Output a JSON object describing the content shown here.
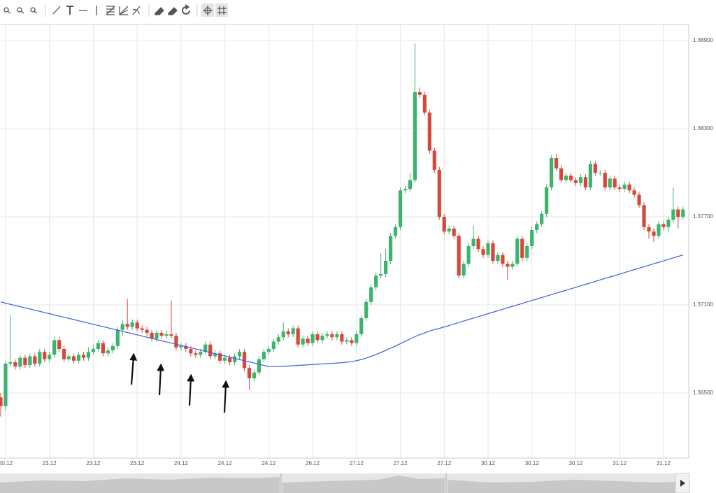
{
  "chart_data": {
    "type": "candlestick",
    "categories": [
      null,
      "20.12",
      null,
      null,
      null,
      null,
      null,
      null,
      null,
      null,
      "23.12",
      null,
      null,
      null,
      null,
      null,
      null,
      null,
      null,
      "23.12",
      null,
      null,
      null,
      null,
      null,
      null,
      null,
      null,
      "23.12",
      null,
      null,
      null,
      null,
      null,
      null,
      null,
      null,
      "24.12",
      null,
      null,
      null,
      null,
      null,
      null,
      null,
      null,
      "24.12",
      null,
      null,
      null,
      null,
      null,
      null,
      null,
      null,
      "24.12",
      null,
      null,
      null,
      null,
      null,
      null,
      null,
      null,
      "26.12",
      null,
      null,
      null,
      null,
      null,
      null,
      null,
      null,
      "27.12",
      null,
      null,
      null,
      null,
      null,
      null,
      null,
      null,
      "27.12",
      null,
      null,
      null,
      null,
      null,
      null,
      null,
      null,
      "27.12",
      null,
      null,
      null,
      null,
      null,
      null,
      null,
      null,
      "30.12",
      null,
      null,
      null,
      null,
      null,
      null,
      null,
      null,
      "30.12",
      null,
      null,
      null,
      null,
      null,
      null,
      null,
      null,
      "30.12",
      null,
      null,
      null,
      null,
      null,
      null,
      null,
      null,
      "31.12",
      null,
      null,
      null,
      null,
      null,
      null,
      null,
      null,
      "31.12",
      null,
      null,
      null,
      null
    ],
    "open": [
      1.3647,
      1.3641,
      1.367,
      1.3671,
      1.3668,
      1.3674,
      1.3669,
      1.3675,
      1.367,
      1.3678,
      1.3673,
      1.3676,
      1.3686,
      1.368,
      1.3673,
      1.3675,
      1.3672,
      1.3676,
      1.3674,
      1.3678,
      1.368,
      1.3684,
      1.3677,
      1.3679,
      1.3682,
      1.3693,
      1.3697,
      1.3695,
      1.3698,
      1.3694,
      1.3693,
      1.3691,
      1.3687,
      1.3691,
      1.3689,
      1.369,
      1.3689,
      1.3681,
      1.3682,
      1.368,
      1.3677,
      1.3676,
      1.3678,
      1.3683,
      1.3675,
      1.3677,
      1.3672,
      1.3674,
      1.3671,
      1.3675,
      1.3678,
      1.3667,
      1.366,
      1.3664,
      1.3673,
      1.3678,
      1.368,
      1.3685,
      1.3688,
      1.3692,
      1.369,
      1.3694,
      1.3683,
      1.3687,
      1.3684,
      1.369,
      1.3686,
      1.3689,
      1.369,
      1.3688,
      1.369,
      1.3685,
      1.3686,
      1.3684,
      1.369,
      1.3701,
      1.3712,
      1.3722,
      1.373,
      1.3731,
      1.374,
      1.3757,
      1.3763,
      1.3788,
      1.3789,
      1.3795,
      1.3855,
      1.3853,
      1.3841,
      1.3815,
      1.3802,
      1.377,
      1.376,
      1.3762,
      1.3757,
      1.373,
      1.3738,
      1.375,
      1.3755,
      1.3748,
      1.3744,
      1.3752,
      1.374,
      1.3744,
      1.3738,
      1.3736,
      1.3738,
      1.3755,
      1.3742,
      1.375,
      1.3761,
      1.3765,
      1.3772,
      1.379,
      1.381,
      1.3803,
      1.3795,
      1.3798,
      1.3795,
      1.3793,
      1.3797,
      1.379,
      1.3806,
      1.38,
      1.38,
      1.379,
      1.3796,
      1.379,
      1.3789,
      1.3792,
      1.3788,
      1.3785,
      1.3778,
      1.3763,
      1.376,
      1.3757,
      1.3765,
      1.3763,
      1.3768,
      1.3775,
      1.377
    ],
    "high": [
      1.365,
      1.3672,
      1.3703,
      1.3673,
      1.3676,
      1.3676,
      1.3677,
      1.3677,
      1.368,
      1.368,
      1.3678,
      1.3688,
      1.3688,
      1.3682,
      1.3677,
      1.3677,
      1.3678,
      1.3678,
      1.3681,
      1.3683,
      1.3686,
      1.3686,
      1.3681,
      1.3684,
      1.3695,
      1.37,
      1.3714,
      1.37,
      1.37,
      1.3696,
      1.3695,
      1.3693,
      1.3693,
      1.3693,
      1.3692,
      1.3713,
      1.3691,
      1.3684,
      1.3684,
      1.3682,
      1.3679,
      1.368,
      1.3685,
      1.3685,
      1.3679,
      1.3679,
      1.3676,
      1.3676,
      1.3677,
      1.368,
      1.368,
      1.3669,
      1.3666,
      1.3675,
      1.368,
      1.3682,
      1.3687,
      1.369,
      1.3698,
      1.3694,
      1.3696,
      1.3696,
      1.3689,
      1.3689,
      1.3692,
      1.3692,
      1.3691,
      1.3692,
      1.3692,
      1.3692,
      1.3692,
      1.3688,
      1.3688,
      1.3692,
      1.3703,
      1.3714,
      1.3724,
      1.3732,
      1.3745,
      1.3748,
      1.3759,
      1.3765,
      1.379,
      1.3791,
      1.38,
      1.3888,
      1.3858,
      1.3855,
      1.3843,
      1.3817,
      1.3804,
      1.3772,
      1.3764,
      1.3764,
      1.3759,
      1.374,
      1.3752,
      1.3764,
      1.3757,
      1.375,
      1.3754,
      1.3754,
      1.3746,
      1.3746,
      1.374,
      1.374,
      1.3757,
      1.3757,
      1.3752,
      1.3763,
      1.3767,
      1.3774,
      1.3792,
      1.3812,
      1.3813,
      1.3805,
      1.38,
      1.38,
      1.3797,
      1.3799,
      1.3799,
      1.3808,
      1.3808,
      1.3802,
      1.3802,
      1.3798,
      1.3798,
      1.3792,
      1.3794,
      1.3794,
      1.379,
      1.3787,
      1.378,
      1.3765,
      1.3762,
      1.3767,
      1.3767,
      1.377,
      1.379,
      1.3777,
      1.3777
    ],
    "low": [
      1.3634,
      1.3638,
      1.3668,
      1.3666,
      1.3666,
      1.3667,
      1.3667,
      1.3668,
      1.3668,
      1.3671,
      1.3671,
      1.3674,
      1.3678,
      1.3671,
      1.3671,
      1.367,
      1.367,
      1.3672,
      1.3672,
      1.3676,
      1.3678,
      1.3675,
      1.3675,
      1.3677,
      1.368,
      1.3689,
      1.3693,
      1.3693,
      1.3692,
      1.3691,
      1.3689,
      1.3685,
      1.3685,
      1.3687,
      1.3687,
      1.3687,
      1.3679,
      1.3679,
      1.3678,
      1.3675,
      1.3674,
      1.3674,
      1.3676,
      1.3673,
      1.3673,
      1.367,
      1.367,
      1.3669,
      1.3669,
      1.3673,
      1.3665,
      1.3652,
      1.3658,
      1.3662,
      1.3671,
      1.3676,
      1.3678,
      1.3683,
      1.3686,
      1.3688,
      1.3688,
      1.3681,
      1.3681,
      1.3682,
      1.3682,
      1.3684,
      1.3684,
      1.3687,
      1.3686,
      1.3686,
      1.3683,
      1.3683,
      1.3682,
      1.3682,
      1.3688,
      1.3699,
      1.371,
      1.372,
      1.3728,
      1.3729,
      1.3738,
      1.3755,
      1.3761,
      1.3786,
      1.3787,
      1.3793,
      1.3851,
      1.3839,
      1.3813,
      1.38,
      1.3768,
      1.3758,
      1.3758,
      1.3755,
      1.3728,
      1.3728,
      1.3736,
      1.3748,
      1.3746,
      1.3742,
      1.3742,
      1.3738,
      1.3738,
      1.3736,
      1.3727,
      1.3734,
      1.3736,
      1.374,
      1.374,
      1.3748,
      1.3759,
      1.3763,
      1.377,
      1.3788,
      1.3801,
      1.3793,
      1.3793,
      1.3793,
      1.3791,
      1.3791,
      1.3788,
      1.3788,
      1.3798,
      1.3798,
      1.3788,
      1.3788,
      1.3788,
      1.3787,
      1.3787,
      1.3786,
      1.3783,
      1.3776,
      1.3761,
      1.3755,
      1.3753,
      1.3755,
      1.3761,
      1.376,
      1.3766,
      1.3762,
      1.3768
    ],
    "close": [
      1.3641,
      1.367,
      1.3671,
      1.3668,
      1.3674,
      1.3669,
      1.3675,
      1.367,
      1.3678,
      1.3673,
      1.3676,
      1.3686,
      1.368,
      1.3673,
      1.3675,
      1.3672,
      1.3676,
      1.3674,
      1.3678,
      1.368,
      1.3684,
      1.3677,
      1.3679,
      1.3682,
      1.3693,
      1.3697,
      1.3695,
      1.3698,
      1.3694,
      1.3693,
      1.3691,
      1.3687,
      1.3691,
      1.3689,
      1.369,
      1.3689,
      1.3681,
      1.3682,
      1.368,
      1.3677,
      1.3676,
      1.3678,
      1.3683,
      1.3675,
      1.3677,
      1.3672,
      1.3674,
      1.3671,
      1.3675,
      1.3678,
      1.3667,
      1.366,
      1.3664,
      1.3673,
      1.3678,
      1.368,
      1.3685,
      1.3688,
      1.3692,
      1.369,
      1.3694,
      1.3683,
      1.3687,
      1.3684,
      1.369,
      1.3686,
      1.3689,
      1.369,
      1.3688,
      1.369,
      1.3685,
      1.3686,
      1.3684,
      1.369,
      1.3701,
      1.3712,
      1.3722,
      1.373,
      1.3731,
      1.374,
      1.3757,
      1.3763,
      1.3788,
      1.3789,
      1.3795,
      1.3855,
      1.3853,
      1.3841,
      1.3815,
      1.3802,
      1.377,
      1.376,
      1.3762,
      1.3757,
      1.373,
      1.3738,
      1.375,
      1.3755,
      1.3748,
      1.3744,
      1.3752,
      1.374,
      1.3744,
      1.3738,
      1.3736,
      1.3738,
      1.3755,
      1.3742,
      1.375,
      1.3761,
      1.3765,
      1.3772,
      1.379,
      1.381,
      1.3803,
      1.3795,
      1.3798,
      1.3795,
      1.3793,
      1.3797,
      1.379,
      1.3806,
      1.38,
      1.38,
      1.379,
      1.3796,
      1.379,
      1.3789,
      1.3792,
      1.3788,
      1.3785,
      1.3778,
      1.3763,
      1.376,
      1.3757,
      1.3765,
      1.3763,
      1.3768,
      1.3775,
      1.377,
      1.3775
    ],
    "up_color": "#3cb46e",
    "down_color": "#d6493a",
    "line": {
      "color": "#3d5ee0",
      "values": [
        1.3712,
        1.37112,
        1.37104,
        1.37096,
        1.37088,
        1.3708,
        1.37072,
        1.37064,
        1.37056,
        1.37048,
        1.3704,
        1.37032,
        1.37024,
        1.37016,
        1.37008,
        1.37,
        1.36992,
        1.36984,
        1.36976,
        1.36968,
        1.3696,
        1.36952,
        1.36944,
        1.36936,
        1.36928,
        1.3692,
        1.36912,
        1.36904,
        1.36896,
        1.36888,
        1.3688,
        1.36872,
        1.36864,
        1.36856,
        1.36848,
        1.3684,
        1.36832,
        1.36824,
        1.36816,
        1.36808,
        1.368,
        1.36792,
        1.36784,
        1.36776,
        1.36768,
        1.3676,
        1.36752,
        1.36744,
        1.36736,
        1.36728,
        1.3672,
        1.36712,
        1.36704,
        1.36696,
        1.36688,
        1.3668,
        1.3668,
        1.3668,
        1.36682,
        1.36684,
        1.36686,
        1.36688,
        1.3669,
        1.36692,
        1.36694,
        1.36696,
        1.36698,
        1.367,
        1.36702,
        1.36704,
        1.36706,
        1.3671,
        1.36714,
        1.3672,
        1.36728,
        1.36738,
        1.3675,
        1.36762,
        1.36776,
        1.3679,
        1.36805,
        1.3682,
        1.36836,
        1.36852,
        1.36868,
        1.36884,
        1.36898,
        1.3691,
        1.36922,
        1.36932,
        1.3694,
        1.3695,
        1.3696,
        1.3697,
        1.3698,
        1.3699,
        1.37,
        1.3701,
        1.3702,
        1.3703,
        1.3704,
        1.3705,
        1.3706,
        1.3707,
        1.3708,
        1.3709,
        1.371,
        1.3711,
        1.3712,
        1.3713,
        1.3714,
        1.3715,
        1.3716,
        1.3717,
        1.3718,
        1.3719,
        1.372,
        1.3721,
        1.3722,
        1.3723,
        1.3724,
        1.3725,
        1.3726,
        1.3727,
        1.3728,
        1.3729,
        1.373,
        1.3731,
        1.3732,
        1.3733,
        1.3734,
        1.3735,
        1.3736,
        1.3737,
        1.3738,
        1.3739,
        1.374,
        1.3741,
        1.3742,
        1.3743,
        1.3744
      ]
    },
    "ylim": [
      1.36057,
      1.3901
    ],
    "yticks": [
      {
        "value": 1.365,
        "label": "1.36500"
      },
      {
        "value": 1.371,
        "label": "1.37100"
      },
      {
        "value": 1.377,
        "label": "1.37700"
      },
      {
        "value": 1.383,
        "label": "1.38300"
      },
      {
        "value": 1.389,
        "label": "1.38900"
      }
    ],
    "grid": true
  }
}
